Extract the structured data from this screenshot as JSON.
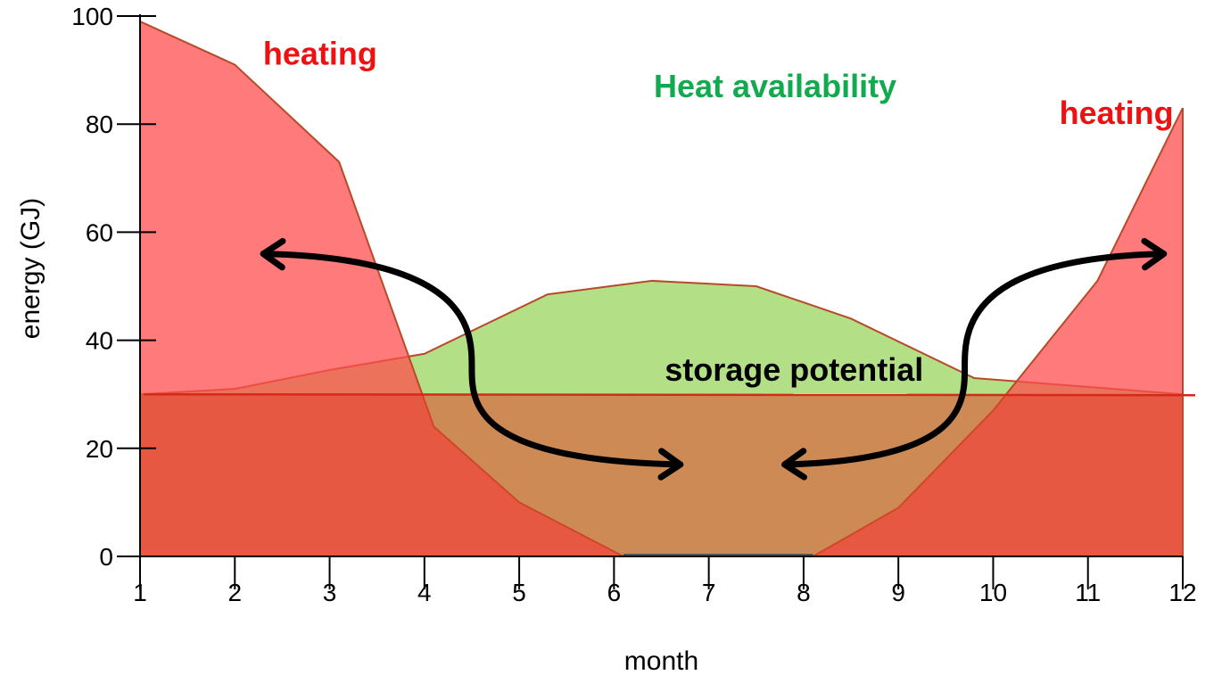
{
  "chart_data": {
    "type": "area",
    "xlabel": "month",
    "ylabel": "energy (GJ)",
    "xlim": [
      1,
      12
    ],
    "ylim": [
      0,
      100
    ],
    "x_ticks": [
      1,
      2,
      3,
      4,
      5,
      6,
      7,
      8,
      9,
      10,
      11,
      12
    ],
    "y_ticks": [
      0,
      20,
      40,
      60,
      80,
      100
    ],
    "grid": false,
    "colors": {
      "heating_fill": "#ff4d4d",
      "heating_line": "#b84a2a",
      "heat_fill": "#b3df86",
      "heat_line": "#b84a2a",
      "base_fill": "#e2432b",
      "base_line": "#d42a1a",
      "heating_text": "#ee1111",
      "heat_text": "#11aa4e"
    },
    "series": [
      {
        "id": "heat",
        "x": [
          1,
          2,
          3,
          4,
          5.3,
          6.4,
          7.5,
          8.5,
          9.8,
          12
        ],
        "values": [
          30,
          31,
          34.5,
          37.5,
          48.5,
          51,
          50,
          44,
          33,
          30
        ]
      },
      {
        "id": "heating",
        "x": [
          1,
          2,
          3.1,
          4.1,
          5,
          6.1,
          8.1,
          9,
          10,
          11.1,
          12
        ],
        "values": [
          99,
          91,
          73,
          24,
          10,
          0,
          0,
          9,
          27,
          51,
          83
        ]
      },
      {
        "id": "base",
        "x": [
          1,
          12
        ],
        "values": [
          30,
          30
        ]
      }
    ],
    "annotations": [
      {
        "id": "heating-left",
        "text": "heating",
        "x": 2.9,
        "y": 93
      },
      {
        "id": "heat-availability",
        "text": "Heat availability",
        "x": 7.7,
        "y": 87
      },
      {
        "id": "heating-right",
        "text": "heating",
        "x": 11.3,
        "y": 82
      },
      {
        "id": "storage-potential",
        "text": "storage potential",
        "x": 7.9,
        "y": 34.5
      }
    ],
    "arrows": [
      {
        "id": "left",
        "x": [
          2.3,
          4.5,
          6.7
        ],
        "y": [
          56,
          35,
          17
        ]
      },
      {
        "id": "right",
        "x": [
          11.8,
          9.7,
          7.8
        ],
        "y": [
          56,
          35,
          17
        ]
      }
    ]
  }
}
